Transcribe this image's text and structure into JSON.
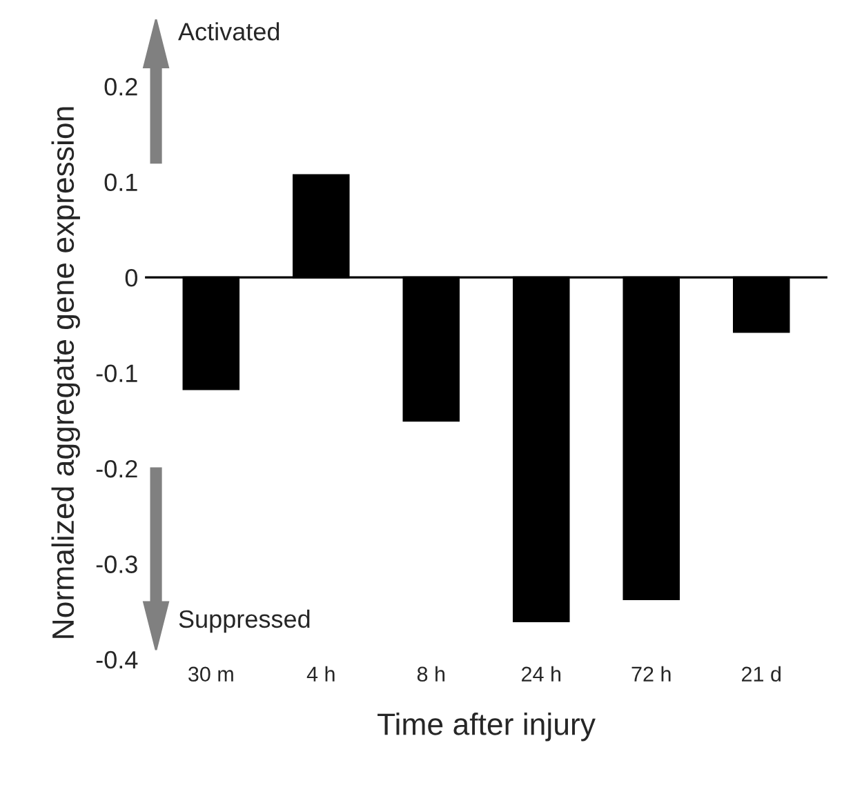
{
  "chart_data": {
    "type": "bar",
    "xlabel": "Time after injury",
    "ylabel": "Normalized aggregate gene expression",
    "categories": [
      "30 m",
      "4 h",
      "8 h",
      "24 h",
      "72 h",
      "21 d"
    ],
    "values": [
      -0.117,
      0.107,
      -0.15,
      -0.36,
      -0.337,
      -0.057
    ],
    "color": "#000000",
    "ylim": [
      -0.4,
      0.2
    ],
    "yticks": [
      -0.4,
      -0.3,
      -0.2,
      -0.1,
      0,
      0.1,
      0.2
    ],
    "ref_lines": [
      {
        "axis": "y",
        "value": 0,
        "color": "#000000"
      }
    ],
    "grid": false,
    "legend": false,
    "annotations": [
      "Activated",
      "Suppressed"
    ]
  }
}
